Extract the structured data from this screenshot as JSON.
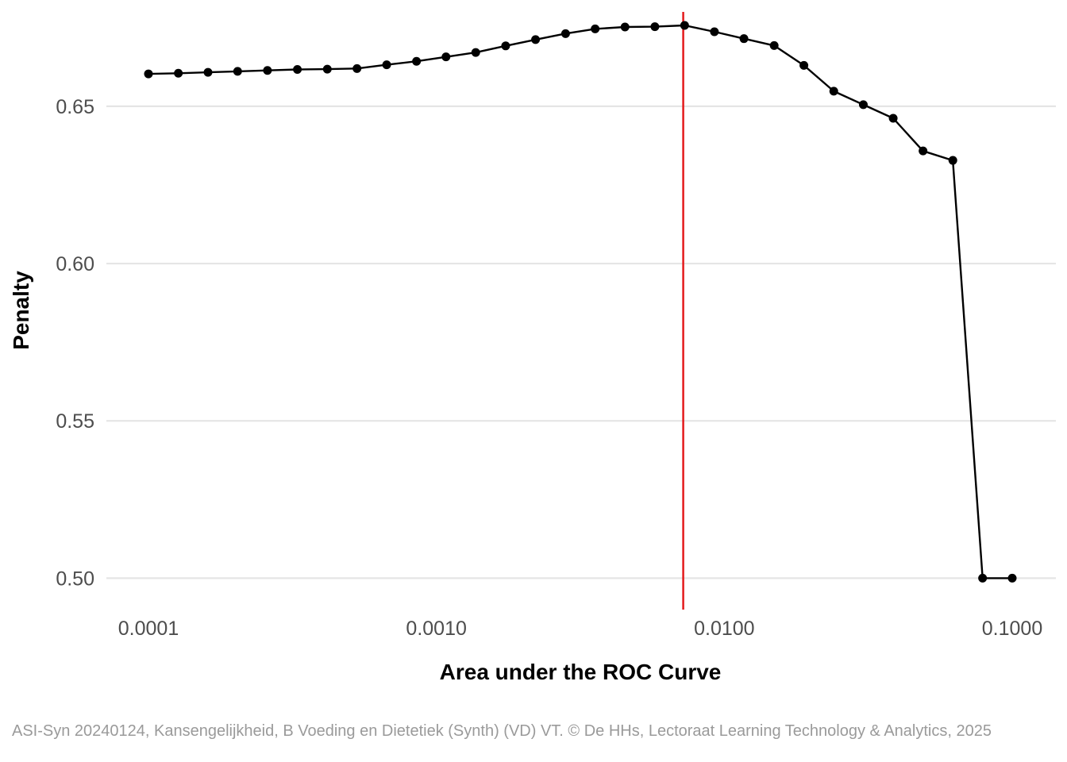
{
  "chart_data": {
    "type": "line",
    "xlabel": "Area under the ROC Curve",
    "ylabel": "Penalty",
    "x_scale": "log10",
    "xlim": [
      0.0001,
      0.1
    ],
    "ylim": [
      0.49,
      0.68
    ],
    "x_ticks": [
      0.0001,
      0.001,
      0.01,
      0.1
    ],
    "x_tick_labels": [
      "0.0001",
      "0.0010",
      "0.0100",
      "0.1000"
    ],
    "y_ticks": [
      0.5,
      0.55,
      0.6,
      0.65
    ],
    "y_tick_labels": [
      "0.50",
      "0.55",
      "0.60",
      "0.65"
    ],
    "grid": "horizontal major",
    "reference_line": {
      "x": 0.0072,
      "color": "#e31a1c"
    },
    "series": [
      {
        "color": "#000000",
        "x": [
          0.0001,
          0.000127,
          0.000161,
          0.000204,
          0.000259,
          0.000329,
          0.000418,
          0.00053,
          0.000672,
          0.000853,
          0.00108,
          0.00137,
          0.00174,
          0.00221,
          0.00281,
          0.00356,
          0.00452,
          0.00574,
          0.00728,
          0.00924,
          0.0117,
          0.0149,
          0.0189,
          0.024,
          0.0304,
          0.0386,
          0.049,
          0.0622,
          0.0789,
          0.1
        ],
        "values": [
          0.6603,
          0.6605,
          0.6608,
          0.6611,
          0.6614,
          0.6617,
          0.6618,
          0.662,
          0.6632,
          0.6643,
          0.6657,
          0.6671,
          0.6692,
          0.6712,
          0.6731,
          0.6746,
          0.6752,
          0.6753,
          0.6757,
          0.6737,
          0.6715,
          0.6693,
          0.663,
          0.6548,
          0.6505,
          0.6462,
          0.6358,
          0.6328,
          0.5,
          0.5
        ]
      }
    ]
  },
  "caption": "ASI-Syn 20240124, Kansengelijkheid, B Voeding en Dietetiek (Synth) (VD) VT. © De HHs, Lectoraat Learning Technology & Analytics, 2025"
}
